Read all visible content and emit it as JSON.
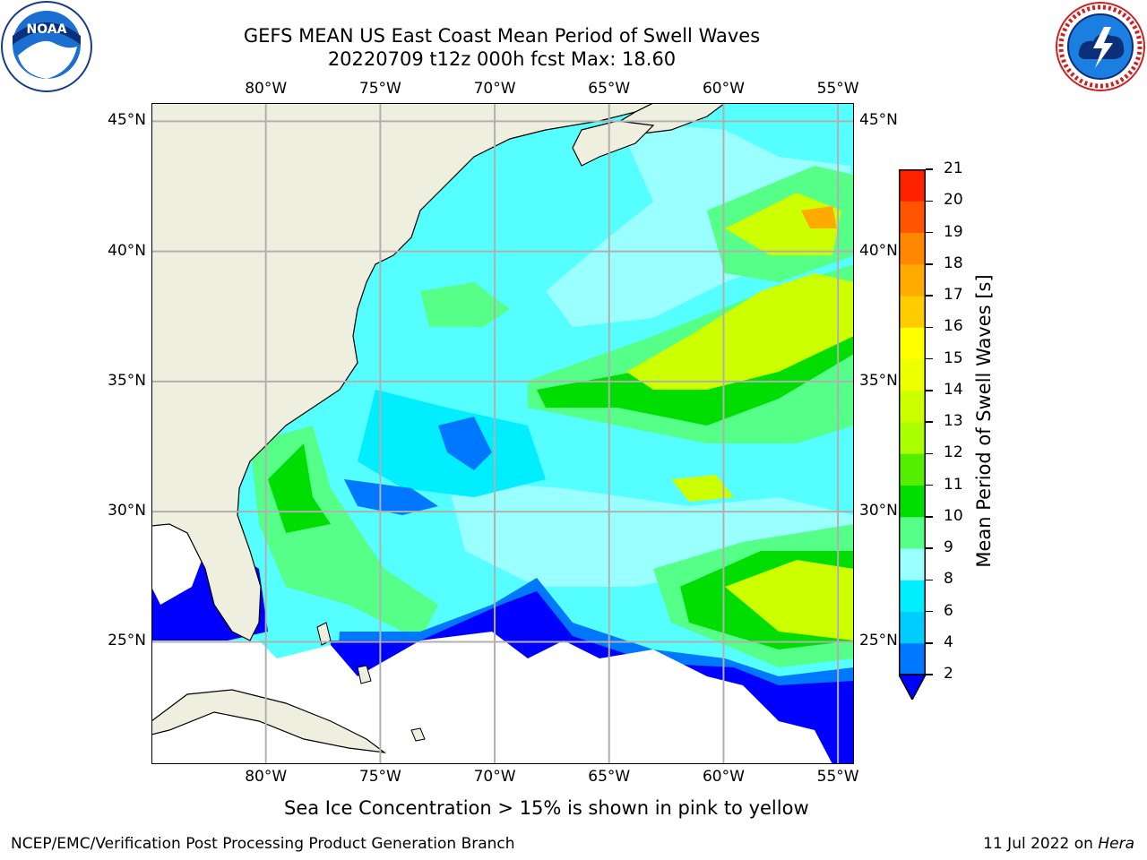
{
  "title": {
    "line1": "GEFS MEAN US East Coast Mean Period of Swell Waves",
    "line2": "20220709 t12z 000h fcst   Max: 18.60"
  },
  "map": {
    "lon_labels": [
      "80°W",
      "75°W",
      "70°W",
      "65°W",
      "60°W",
      "55°W"
    ],
    "lat_labels": [
      "45°N",
      "40°N",
      "35°N",
      "30°N",
      "25°N"
    ],
    "lon_range": [
      -85,
      -54.3
    ],
    "lat_range": [
      20.3,
      45.7
    ],
    "colors": {
      "land": "#efefdf",
      "no_data": "#ffffff",
      "gridline": "#b0b0b0",
      "coast": "#000000"
    }
  },
  "colorbar": {
    "title": "Mean Period of Swell Waves [s]",
    "ticks": [
      "2",
      "4",
      "6",
      "8",
      "9",
      "10",
      "11",
      "12",
      "13",
      "14",
      "15",
      "16",
      "17",
      "18",
      "19",
      "20",
      "21"
    ],
    "levels": [
      2,
      4,
      6,
      8,
      9,
      10,
      11,
      12,
      13,
      14,
      15,
      16,
      17,
      18,
      19,
      20,
      21
    ],
    "level_colors": [
      "#0077ff",
      "#00ccff",
      "#00eeff",
      "#99ffff",
      "#55ff88",
      "#00dd00",
      "#55ee00",
      "#aaff00",
      "#ccff00",
      "#eeff00",
      "#ffff00",
      "#ffcc00",
      "#ffaa00",
      "#ff8800",
      "#ff5500",
      "#ff2200"
    ],
    "under_color": "#0000ff"
  },
  "subtitle": "Sea Ice Concentration > 15% is shown in pink to yellow",
  "footer": {
    "left": "NCEP/EMC/Verification Post Processing Product Generation Branch",
    "right_date": "11 Jul 2022 on",
    "right_host": "Hera"
  },
  "logos": {
    "left": "noaa-logo",
    "right": "nws-logo",
    "noaa_text": "NOAA"
  }
}
